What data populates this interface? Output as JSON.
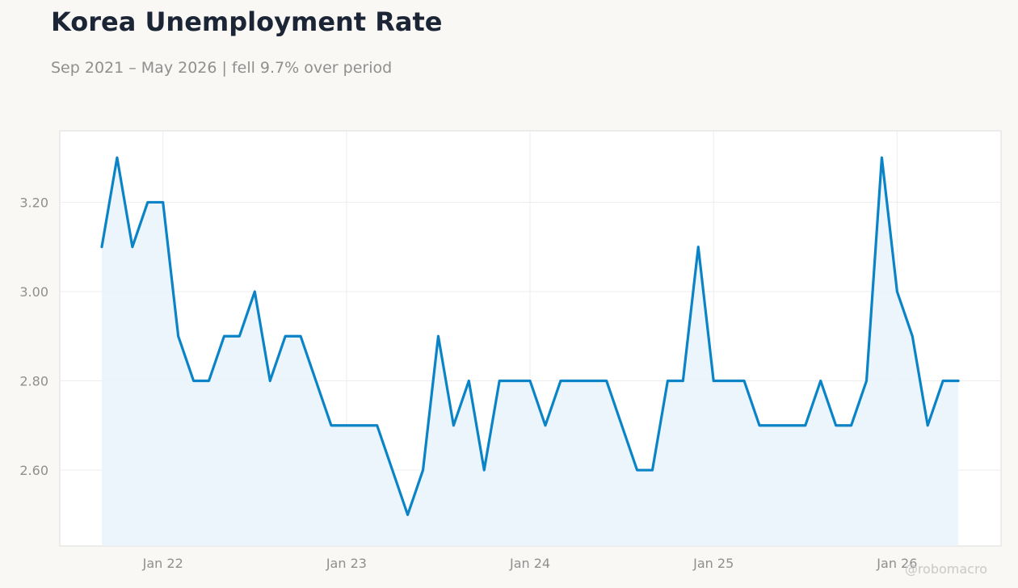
{
  "header": {
    "title": "Korea Unemployment Rate",
    "subtitle": "Sep 2021 – May 2026 | fell 9.7% over period"
  },
  "watermark": "@robomacro",
  "colors": {
    "line": "#0a84c6",
    "fill": "#e9f3fb",
    "grid": "#ededed",
    "axis_text": "#8f8f8f",
    "title": "#1b2536"
  },
  "chart_data": {
    "type": "area",
    "x_start": "2021-09",
    "x_labels": [
      "Jan 22",
      "Jan 23",
      "Jan 24",
      "Jan 25",
      "Jan 26"
    ],
    "x_label_months": [
      "2022-01",
      "2023-01",
      "2024-01",
      "2025-01",
      "2026-01"
    ],
    "y_ticks": [
      "2.60",
      "2.80",
      "3.00",
      "3.20"
    ],
    "y_tick_values": [
      2.6,
      2.8,
      3.0,
      3.2
    ],
    "ylim": [
      2.43,
      3.36
    ],
    "grid": true,
    "series": [
      {
        "values": [
          3.1,
          3.3,
          3.1,
          3.2,
          3.2,
          2.9,
          2.8,
          2.8,
          2.9,
          2.9,
          3.0,
          2.8,
          2.9,
          2.9,
          2.8,
          2.7,
          2.7,
          2.7,
          2.7,
          2.6,
          2.5,
          2.6,
          2.9,
          2.7,
          2.8,
          2.6,
          2.8,
          2.8,
          2.8,
          2.7,
          2.8,
          2.8,
          2.8,
          2.8,
          2.7,
          2.6,
          2.6,
          2.8,
          2.8,
          3.1,
          2.8,
          2.8,
          2.8,
          2.7,
          2.7,
          2.7,
          2.7,
          2.8,
          2.7,
          2.7,
          2.8,
          3.3,
          3.0,
          2.9,
          2.7,
          2.8,
          2.8
        ]
      }
    ]
  }
}
